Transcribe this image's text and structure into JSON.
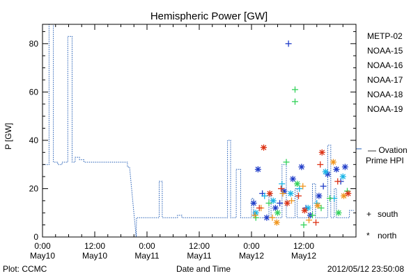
{
  "chart_data": {
    "type": "scatter",
    "title": "Hemispheric Power [GW]",
    "xlabel": "Date and Time",
    "ylabel": "P [GW]",
    "ylim": [
      0,
      88
    ],
    "xlim_hours": [
      0,
      72
    ],
    "y_ticks": [
      0,
      20,
      40,
      60,
      80
    ],
    "x_ticks": [
      {
        "hour": 0,
        "line1": "0:00",
        "line2": "May10"
      },
      {
        "hour": 12,
        "line1": "12:00",
        "line2": "May10"
      },
      {
        "hour": 24,
        "line1": "0:00",
        "line2": "May11"
      },
      {
        "hour": 36,
        "line1": "12:00",
        "line2": "May11"
      },
      {
        "hour": 48,
        "line1": "0:00",
        "line2": "May12"
      },
      {
        "hour": 60,
        "line1": "12:00",
        "line2": "May12"
      }
    ],
    "footer_left": "Plot: CCMC",
    "footer_right": "2012/05/12 23:50:08",
    "legend": [
      {
        "name": "METP-02",
        "color": "#000000"
      },
      {
        "name": "NOAA-15",
        "color": "#1f3cc8"
      },
      {
        "name": "NOAA-16",
        "color": "#19b4e6"
      },
      {
        "name": "NOAA-17",
        "color": "#32d25a"
      },
      {
        "name": "NOAA-18",
        "color": "#f0961e"
      },
      {
        "name": "NOAA-19",
        "color": "#dc3214"
      }
    ],
    "ovation": {
      "label_line1": "— Ovation",
      "label_line2": "Prime HPI",
      "value": 36.5,
      "color": "#1f5ab4",
      "series": [
        [
          0,
          30
        ],
        [
          1.5,
          30
        ],
        [
          1.5,
          88
        ],
        [
          2.5,
          88
        ],
        [
          2.5,
          31
        ],
        [
          3.5,
          31
        ],
        [
          3.5,
          30
        ],
        [
          4.5,
          30
        ],
        [
          4.5,
          31
        ],
        [
          5.8,
          31
        ],
        [
          5.8,
          83
        ],
        [
          6.8,
          83
        ],
        [
          6.8,
          31
        ],
        [
          7.5,
          31
        ],
        [
          7.5,
          33
        ],
        [
          8.5,
          33
        ],
        [
          8.5,
          32
        ],
        [
          9.5,
          32
        ],
        [
          9.5,
          31
        ],
        [
          19.5,
          31
        ],
        [
          19.5,
          29
        ],
        [
          20,
          29
        ],
        [
          21.5,
          0
        ],
        [
          21.6,
          8
        ],
        [
          26.8,
          8
        ],
        [
          26.8,
          23
        ],
        [
          27.5,
          23
        ],
        [
          27.5,
          8
        ],
        [
          31,
          8
        ],
        [
          31,
          9
        ],
        [
          32,
          9
        ],
        [
          32,
          8
        ],
        [
          42.5,
          8
        ],
        [
          42.5,
          40
        ],
        [
          43.2,
          40
        ],
        [
          43.2,
          8
        ],
        [
          44.5,
          8
        ],
        [
          44.5,
          28
        ],
        [
          45.5,
          28
        ],
        [
          45.5,
          8
        ],
        [
          48,
          8
        ],
        [
          48,
          16
        ],
        [
          48.5,
          16
        ],
        [
          48.5,
          8
        ],
        [
          52,
          8
        ],
        [
          52,
          18
        ],
        [
          52.5,
          18
        ],
        [
          52.5,
          8
        ],
        [
          55,
          8
        ],
        [
          55,
          30
        ],
        [
          56,
          30
        ],
        [
          56,
          8
        ],
        [
          58,
          8
        ],
        [
          58,
          20
        ],
        [
          58.5,
          20
        ],
        [
          58.5,
          8
        ],
        [
          62,
          8
        ],
        [
          62,
          22
        ],
        [
          62.7,
          22
        ],
        [
          62.7,
          8
        ],
        [
          65.5,
          8
        ],
        [
          65.5,
          38
        ],
        [
          66.2,
          38
        ],
        [
          66.2,
          8
        ],
        [
          67,
          8
        ],
        [
          67,
          20
        ],
        [
          67.5,
          20
        ],
        [
          67.5,
          8
        ],
        [
          70.5,
          8
        ],
        [
          70.5,
          11
        ],
        [
          71.5,
          11
        ]
      ]
    },
    "points": [
      {
        "sat": "NOAA-15",
        "h": 48.5,
        "p": 14,
        "m": "north"
      },
      {
        "sat": "NOAA-15",
        "h": 49.5,
        "p": 28,
        "m": "north"
      },
      {
        "sat": "NOAA-15",
        "h": 51.5,
        "p": 8,
        "m": "north"
      },
      {
        "sat": "NOAA-15",
        "h": 53.5,
        "p": 12,
        "m": "north"
      },
      {
        "sat": "NOAA-15",
        "h": 55.5,
        "p": 19,
        "m": "north"
      },
      {
        "sat": "NOAA-15",
        "h": 57.5,
        "p": 24,
        "m": "north"
      },
      {
        "sat": "NOAA-15",
        "h": 59.5,
        "p": 29,
        "m": "north"
      },
      {
        "sat": "NOAA-15",
        "h": 61.5,
        "p": 9,
        "m": "north"
      },
      {
        "sat": "NOAA-15",
        "h": 63.5,
        "p": 17,
        "m": "north"
      },
      {
        "sat": "NOAA-15",
        "h": 65.5,
        "p": 26,
        "m": "north"
      },
      {
        "sat": "NOAA-15",
        "h": 67.5,
        "p": 28,
        "m": "north"
      },
      {
        "sat": "NOAA-15",
        "h": 69.5,
        "p": 29,
        "m": "north"
      },
      {
        "sat": "NOAA-15",
        "h": 56.5,
        "p": 80,
        "m": "south"
      },
      {
        "sat": "NOAA-15",
        "h": 50.5,
        "p": 18,
        "m": "south"
      },
      {
        "sat": "NOAA-15",
        "h": 54.5,
        "p": 14,
        "m": "south"
      },
      {
        "sat": "NOAA-15",
        "h": 60.5,
        "p": 12,
        "m": "south"
      },
      {
        "sat": "NOAA-15",
        "h": 64.5,
        "p": 21,
        "m": "south"
      },
      {
        "sat": "NOAA-15",
        "h": 68.5,
        "p": 23,
        "m": "south"
      },
      {
        "sat": "NOAA-16",
        "h": 49,
        "p": 10,
        "m": "north"
      },
      {
        "sat": "NOAA-16",
        "h": 53,
        "p": 15,
        "m": "north"
      },
      {
        "sat": "NOAA-16",
        "h": 57,
        "p": 18,
        "m": "north"
      },
      {
        "sat": "NOAA-16",
        "h": 61,
        "p": 12,
        "m": "north"
      },
      {
        "sat": "NOAA-16",
        "h": 65,
        "p": 27,
        "m": "north"
      },
      {
        "sat": "NOAA-16",
        "h": 69,
        "p": 25,
        "m": "north"
      },
      {
        "sat": "NOAA-16",
        "h": 51,
        "p": 17,
        "m": "south"
      },
      {
        "sat": "NOAA-16",
        "h": 55,
        "p": 22,
        "m": "south"
      },
      {
        "sat": "NOAA-16",
        "h": 59,
        "p": 20,
        "m": "south"
      },
      {
        "sat": "NOAA-16",
        "h": 63,
        "p": 14,
        "m": "south"
      },
      {
        "sat": "NOAA-16",
        "h": 67,
        "p": 16,
        "m": "south"
      },
      {
        "sat": "NOAA-17",
        "h": 58,
        "p": 61,
        "m": "south"
      },
      {
        "sat": "NOAA-17",
        "h": 58,
        "p": 56,
        "m": "south"
      },
      {
        "sat": "NOAA-17",
        "h": 56,
        "p": 31,
        "m": "south"
      },
      {
        "sat": "NOAA-17",
        "h": 49,
        "p": 8,
        "m": "south"
      },
      {
        "sat": "NOAA-17",
        "h": 52,
        "p": 14,
        "m": "south"
      },
      {
        "sat": "NOAA-17",
        "h": 60,
        "p": 5,
        "m": "south"
      },
      {
        "sat": "NOAA-17",
        "h": 62,
        "p": 9,
        "m": "south"
      },
      {
        "sat": "NOAA-17",
        "h": 64,
        "p": 12,
        "m": "south"
      },
      {
        "sat": "NOAA-17",
        "h": 66,
        "p": 16,
        "m": "south"
      },
      {
        "sat": "NOAA-17",
        "h": 70,
        "p": 19,
        "m": "south"
      },
      {
        "sat": "NOAA-17",
        "h": 54,
        "p": 10,
        "m": "north"
      },
      {
        "sat": "NOAA-17",
        "h": 58.5,
        "p": 22,
        "m": "north"
      },
      {
        "sat": "NOAA-17",
        "h": 68,
        "p": 10,
        "m": "north"
      },
      {
        "sat": "NOAA-18",
        "h": 48.8,
        "p": 9,
        "m": "south"
      },
      {
        "sat": "NOAA-18",
        "h": 50.2,
        "p": 12,
        "m": "south"
      },
      {
        "sat": "NOAA-18",
        "h": 52.8,
        "p": 8,
        "m": "south"
      },
      {
        "sat": "NOAA-18",
        "h": 55.2,
        "p": 18,
        "m": "south"
      },
      {
        "sat": "NOAA-18",
        "h": 57.2,
        "p": 15,
        "m": "south"
      },
      {
        "sat": "NOAA-18",
        "h": 59.8,
        "p": 21,
        "m": "south"
      },
      {
        "sat": "NOAA-18",
        "h": 61.2,
        "p": 7,
        "m": "south"
      },
      {
        "sat": "NOAA-18",
        "h": 66.8,
        "p": 31,
        "m": "north"
      },
      {
        "sat": "NOAA-18",
        "h": 63.2,
        "p": 13,
        "m": "north"
      },
      {
        "sat": "NOAA-18",
        "h": 53.8,
        "p": 6,
        "m": "north"
      },
      {
        "sat": "NOAA-18",
        "h": 69.2,
        "p": 17,
        "m": "north"
      },
      {
        "sat": "NOAA-19",
        "h": 50.8,
        "p": 37,
        "m": "north"
      },
      {
        "sat": "NOAA-19",
        "h": 64.2,
        "p": 35,
        "m": "north"
      },
      {
        "sat": "NOAA-19",
        "h": 52.2,
        "p": 18,
        "m": "north"
      },
      {
        "sat": "NOAA-19",
        "h": 56.2,
        "p": 14,
        "m": "north"
      },
      {
        "sat": "NOAA-19",
        "h": 60.2,
        "p": 11,
        "m": "north"
      },
      {
        "sat": "NOAA-19",
        "h": 70.2,
        "p": 18,
        "m": "north"
      },
      {
        "sat": "NOAA-19",
        "h": 49.8,
        "p": 12,
        "m": "south"
      },
      {
        "sat": "NOAA-19",
        "h": 54.8,
        "p": 20,
        "m": "south"
      },
      {
        "sat": "NOAA-19",
        "h": 58.8,
        "p": 17,
        "m": "south"
      },
      {
        "sat": "NOAA-19",
        "h": 62.8,
        "p": 6,
        "m": "south"
      },
      {
        "sat": "NOAA-19",
        "h": 63.8,
        "p": 30,
        "m": "south"
      },
      {
        "sat": "NOAA-19",
        "h": 67.8,
        "p": 23,
        "m": "south"
      }
    ],
    "marker_legend": [
      {
        "symbol": "+",
        "label": "south"
      },
      {
        "symbol": "*",
        "label": "north"
      }
    ]
  }
}
